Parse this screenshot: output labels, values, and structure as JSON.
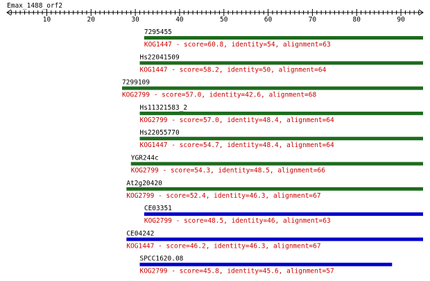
{
  "query": {
    "name": "Emax_1488_orf2",
    "length": 95
  },
  "axis": {
    "min": 1,
    "max": 95,
    "labels": [
      10,
      20,
      30,
      40,
      50,
      60,
      70,
      80,
      90
    ]
  },
  "colors": {
    "green": "#1e6b1e",
    "blue": "#0000cc",
    "desc_text": "#cc0000",
    "name_text": "#000000"
  },
  "hits": [
    {
      "name": "7295455",
      "start": 32,
      "end": 95,
      "color": "green",
      "desc": "KOG1447 - score=60.8, identity=54, alignment=63"
    },
    {
      "name": "Hs22041509",
      "start": 31,
      "end": 95,
      "color": "green",
      "desc": "KOG1447 - score=58.2, identity=50, alignment=64"
    },
    {
      "name": "7299109",
      "start": 27,
      "end": 95,
      "color": "green",
      "desc": "KOG2799 - score=57.0, identity=42.6, alignment=68"
    },
    {
      "name": "Hs11321583_2",
      "start": 31,
      "end": 95,
      "color": "green",
      "desc": "KOG2799 - score=57.0, identity=48.4, alignment=64"
    },
    {
      "name": "Hs22055770",
      "start": 31,
      "end": 95,
      "color": "green",
      "desc": "KOG1447 - score=54.7, identity=48.4, alignment=64"
    },
    {
      "name": "YGR244c",
      "start": 29,
      "end": 95,
      "color": "green",
      "desc": "KOG2799 - score=54.3, identity=48.5, alignment=66"
    },
    {
      "name": "At2g20420",
      "start": 28,
      "end": 95,
      "color": "green",
      "desc": "KOG2799 - score=52.4, identity=46.3, alignment=67"
    },
    {
      "name": "CE03351",
      "start": 32,
      "end": 95,
      "color": "blue",
      "desc": "KOG2799 - score=48.5, identity=46, alignment=63"
    },
    {
      "name": "CE04242",
      "start": 28,
      "end": 95,
      "color": "blue",
      "desc": "KOG1447 - score=46.2, identity=46.3, alignment=67"
    },
    {
      "name": "SPCC1620.08",
      "start": 31,
      "end": 88,
      "color": "blue",
      "desc": "KOG2799 - score=45.8, identity=45.6, alignment=57"
    }
  ]
}
